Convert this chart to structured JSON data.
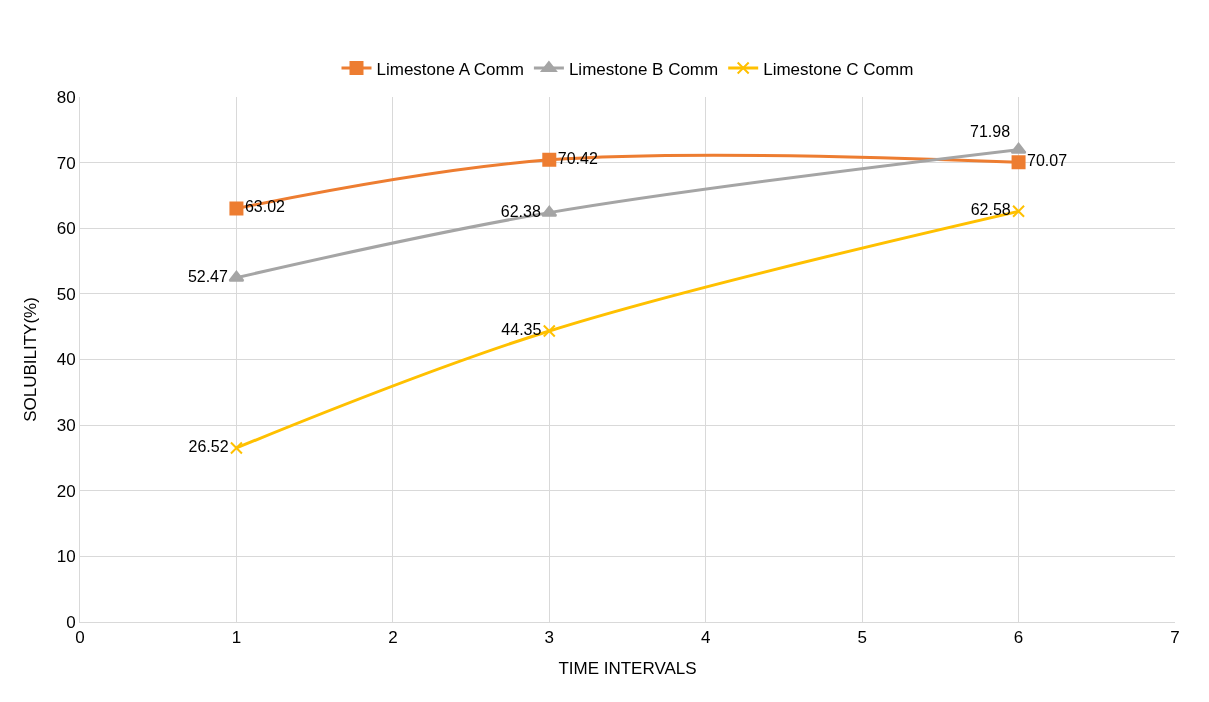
{
  "chart_data": {
    "type": "line",
    "xlabel": "TIME INTERVALS",
    "ylabel": "SOLUBILITY(%)",
    "x": [
      1,
      3,
      6
    ],
    "series": [
      {
        "name": "Limestone A Comm",
        "color": "#ed7d31",
        "marker": "square",
        "values": [
          63.02,
          70.42,
          70.07
        ]
      },
      {
        "name": "Limestone B Comm",
        "color": "#a5a5a5",
        "marker": "triangle",
        "values": [
          52.47,
          62.38,
          71.98
        ]
      },
      {
        "name": "Limestone C Comm",
        "color": "#ffc000",
        "marker": "cross",
        "values": [
          26.52,
          44.35,
          62.58
        ]
      }
    ],
    "xlim": [
      0,
      7
    ],
    "xticks": [
      0,
      1,
      2,
      3,
      4,
      5,
      6,
      7
    ],
    "ylim": [
      0,
      80
    ],
    "yticks": [
      0,
      10,
      20,
      30,
      40,
      50,
      60,
      70,
      80
    ],
    "grid": true,
    "legend": "top",
    "data_labels": true
  }
}
